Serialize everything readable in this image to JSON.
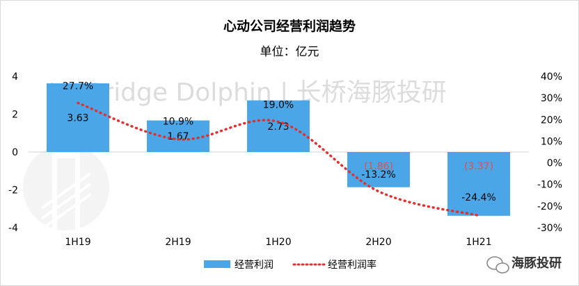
{
  "chart_data": {
    "type": "bar",
    "title": "心动公司经营利润趋势",
    "subtitle": "单位：亿元",
    "categories": [
      "1H19",
      "2H19",
      "1H20",
      "2H20",
      "1H21"
    ],
    "series": [
      {
        "name": "经营利润",
        "type": "bar",
        "axis": "left",
        "color": "#4aa6e6",
        "values": [
          3.63,
          1.67,
          2.73,
          -1.86,
          -3.37
        ],
        "labels": [
          "3.63",
          "1.67",
          "2.73",
          "(1.86)",
          "(3.37)"
        ]
      },
      {
        "name": "经营利润率",
        "type": "line",
        "axis": "right",
        "color": "#e03030",
        "style": "dotted",
        "smooth": true,
        "values": [
          27.7,
          10.9,
          19.0,
          -13.2,
          -24.4
        ],
        "labels": [
          "27.7%",
          "10.9%",
          "19.0%",
          "-13.2%",
          "-24.4%"
        ]
      }
    ],
    "ylim_left": [
      -4,
      4
    ],
    "yticks_left": [
      "4",
      "2",
      "0",
      "-2",
      "-4"
    ],
    "ylim_right": [
      -30,
      40
    ],
    "yticks_right": [
      "40%",
      "30%",
      "20%",
      "10%",
      "0%",
      "-10%",
      "-20%",
      "-30%"
    ],
    "negative_label_color": "#e05050",
    "legend_position": "bottom",
    "grid": false
  },
  "watermark": {
    "text": "Lu Bridge Dolphin | 长桥海豚投研",
    "badge": "海豚投研"
  }
}
